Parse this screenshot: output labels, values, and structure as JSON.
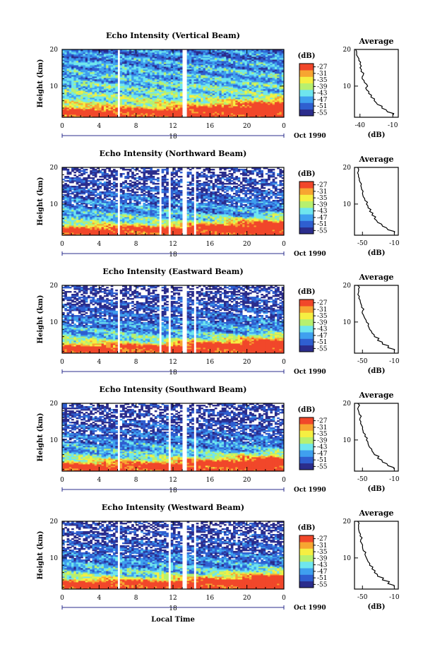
{
  "chart_data": [
    {
      "type": "heatmap",
      "title": "Echo Intensity (Vertical Beam)",
      "xlabel": "",
      "ylabel": "Height (km)",
      "x_ticks": [
        "0",
        "4",
        "8",
        "12",
        "16",
        "20",
        "0"
      ],
      "y_ticks": [
        "20",
        "10"
      ],
      "xlim": [
        0,
        24
      ],
      "ylim": [
        1.5,
        20
      ],
      "date_marker": "18",
      "date_label": "Oct 1990",
      "colorbar": {
        "unit": "(dB)",
        "ticks": [
          "-27",
          "-31",
          "-35",
          "-39",
          "-43",
          "-47",
          "-51",
          "-55"
        ],
        "range": [
          -55,
          -27
        ]
      },
      "data_gaps_hours": [
        [
          6.0,
          6.3
        ],
        [
          13.0,
          13.5
        ]
      ],
      "average_profile": {
        "title": "Average",
        "xlabel": "(dB)",
        "x_ticks": [
          "-40",
          "-10"
        ],
        "xlim": [
          -45,
          -5
        ],
        "y_ticks": [
          "20",
          "10"
        ],
        "heights_km": [
          2,
          3,
          4,
          5,
          6,
          7,
          8,
          9,
          10,
          11,
          12,
          13,
          14,
          15,
          16,
          17,
          18,
          19,
          20
        ],
        "values_db": [
          -10,
          -15,
          -20,
          -24,
          -27,
          -30,
          -32,
          -34,
          -33,
          -36,
          -38,
          -37,
          -39,
          -40,
          -40,
          -41,
          -42,
          -43,
          -44
        ]
      }
    },
    {
      "type": "heatmap",
      "title": "Echo Intensity (Northward Beam)",
      "xlabel": "",
      "ylabel": "Height (km)",
      "x_ticks": [
        "0",
        "4",
        "8",
        "12",
        "16",
        "20",
        "0"
      ],
      "y_ticks": [
        "20",
        "10"
      ],
      "xlim": [
        0,
        24
      ],
      "ylim": [
        1.5,
        20
      ],
      "date_marker": "18",
      "date_label": "Oct 1990",
      "colorbar": {
        "unit": "(dB)",
        "ticks": [
          "-27",
          "-31",
          "-35",
          "-39",
          "-43",
          "-47",
          "-51",
          "-55"
        ],
        "range": [
          -55,
          -27
        ]
      },
      "data_gaps_hours": [
        [
          6.0,
          6.3
        ],
        [
          10.6,
          10.8
        ],
        [
          11.5,
          11.7
        ],
        [
          12.9,
          13.5
        ],
        [
          14.2,
          14.4
        ]
      ],
      "average_profile": {
        "title": "Average",
        "xlabel": "(dB)",
        "x_ticks": [
          "-50",
          "-10"
        ],
        "xlim": [
          -60,
          -5
        ],
        "y_ticks": [
          "20",
          "10"
        ],
        "heights_km": [
          2,
          3,
          4,
          5,
          6,
          7,
          8,
          9,
          10,
          11,
          12,
          13,
          14,
          15,
          16,
          17,
          18,
          19,
          20
        ],
        "values_db": [
          -10,
          -18,
          -25,
          -31,
          -35,
          -38,
          -41,
          -43,
          -45,
          -47,
          -49,
          -50,
          -51,
          -52,
          -53,
          -54,
          -55,
          -55,
          -56
        ]
      }
    },
    {
      "type": "heatmap",
      "title": "Echo Intensity (Eastward Beam)",
      "xlabel": "",
      "ylabel": "Height (km)",
      "x_ticks": [
        "0",
        "4",
        "8",
        "12",
        "16",
        "20",
        "0"
      ],
      "y_ticks": [
        "20",
        "10"
      ],
      "xlim": [
        0,
        24
      ],
      "ylim": [
        1.5,
        20
      ],
      "date_marker": "18",
      "date_label": "Oct 1990",
      "colorbar": {
        "unit": "(dB)",
        "ticks": [
          "-27",
          "-31",
          "-35",
          "-39",
          "-43",
          "-47",
          "-51",
          "-55"
        ],
        "range": [
          -55,
          -27
        ]
      },
      "data_gaps_hours": [
        [
          6.0,
          6.3
        ],
        [
          10.6,
          10.8
        ],
        [
          11.5,
          11.8
        ],
        [
          12.9,
          13.5
        ],
        [
          14.2,
          14.4
        ]
      ],
      "average_profile": {
        "title": "Average",
        "xlabel": "(dB)",
        "x_ticks": [
          "-50",
          "-10"
        ],
        "xlim": [
          -60,
          -5
        ],
        "y_ticks": [
          "20",
          "10"
        ],
        "heights_km": [
          2,
          3,
          4,
          5,
          6,
          7,
          8,
          9,
          10,
          11,
          12,
          13,
          14,
          15,
          16,
          17,
          18,
          19,
          20
        ],
        "values_db": [
          -10,
          -18,
          -25,
          -31,
          -35,
          -38,
          -41,
          -43,
          -45,
          -47,
          -49,
          -50,
          -51,
          -52,
          -53,
          -54,
          -55,
          -55,
          -56
        ]
      }
    },
    {
      "type": "heatmap",
      "title": "Echo Intensity (Southward Beam)",
      "xlabel": "",
      "ylabel": "Height (km)",
      "x_ticks": [
        "0",
        "4",
        "8",
        "12",
        "16",
        "20",
        "0"
      ],
      "y_ticks": [
        "20",
        "10"
      ],
      "xlim": [
        0,
        24
      ],
      "ylim": [
        1.5,
        20
      ],
      "date_marker": "18",
      "date_label": "Oct 1990",
      "colorbar": {
        "unit": "(dB)",
        "ticks": [
          "-27",
          "-31",
          "-35",
          "-39",
          "-43",
          "-47",
          "-51",
          "-55"
        ],
        "range": [
          -55,
          -27
        ]
      },
      "data_gaps_hours": [
        [
          6.0,
          6.3
        ],
        [
          11.5,
          11.8
        ],
        [
          12.9,
          13.5
        ],
        [
          14.2,
          14.4
        ]
      ],
      "average_profile": {
        "title": "Average",
        "xlabel": "(dB)",
        "x_ticks": [
          "-50",
          "-10"
        ],
        "xlim": [
          -60,
          -5
        ],
        "y_ticks": [
          "20",
          "10"
        ],
        "heights_km": [
          2,
          3,
          4,
          5,
          6,
          7,
          8,
          9,
          10,
          11,
          12,
          13,
          14,
          15,
          16,
          17,
          18,
          19,
          20
        ],
        "values_db": [
          -10,
          -18,
          -25,
          -31,
          -35,
          -38,
          -41,
          -43,
          -45,
          -47,
          -49,
          -50,
          -51,
          -52,
          -53,
          -54,
          -55,
          -55,
          -56
        ]
      }
    },
    {
      "type": "heatmap",
      "title": "Echo Intensity (Westward Beam)",
      "xlabel": "Local Time",
      "ylabel": "Height (km)",
      "x_ticks": [
        "0",
        "4",
        "8",
        "12",
        "16",
        "20",
        "0"
      ],
      "y_ticks": [
        "20",
        "10"
      ],
      "xlim": [
        0,
        24
      ],
      "ylim": [
        1.5,
        20
      ],
      "date_marker": "18",
      "date_label": "Oct 1990",
      "colorbar": {
        "unit": "(dB)",
        "ticks": [
          "-27",
          "-31",
          "-35",
          "-39",
          "-43",
          "-47",
          "-51",
          "-55"
        ],
        "range": [
          -55,
          -27
        ]
      },
      "data_gaps_hours": [
        [
          6.0,
          6.3
        ],
        [
          11.5,
          11.8
        ],
        [
          12.9,
          13.5
        ],
        [
          14.2,
          14.4
        ]
      ],
      "average_profile": {
        "title": "Average",
        "xlabel": "(dB)",
        "x_ticks": [
          "-50",
          "-10"
        ],
        "xlim": [
          -60,
          -5
        ],
        "y_ticks": [
          "20",
          "10"
        ],
        "heights_km": [
          2,
          3,
          4,
          5,
          6,
          7,
          8,
          9,
          10,
          11,
          12,
          13,
          14,
          15,
          16,
          17,
          18,
          19,
          20
        ],
        "values_db": [
          -10,
          -18,
          -25,
          -31,
          -35,
          -38,
          -41,
          -43,
          -45,
          -47,
          -49,
          -50,
          -51,
          -52,
          -53,
          -54,
          -55,
          -55,
          -56
        ]
      }
    }
  ],
  "colors": {
    "scale": [
      "#2b2d8c",
      "#2f5fd0",
      "#3fa0ef",
      "#6fe6ee",
      "#b7f06f",
      "#f5ef42",
      "#f7a531",
      "#f1472a"
    ],
    "axis": "#000000",
    "marker": "#2b2d8c"
  }
}
